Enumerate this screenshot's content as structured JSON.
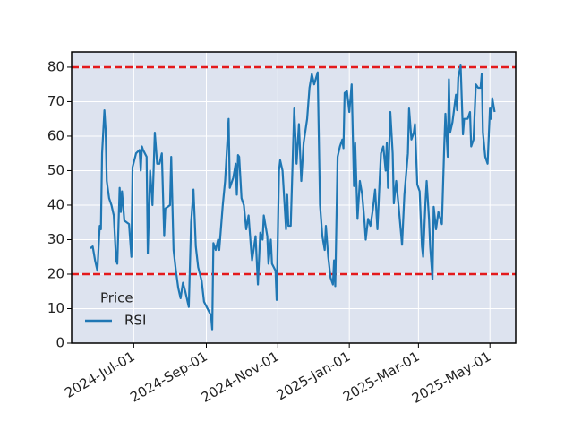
{
  "chart_data": {
    "type": "line",
    "x": [
      "2024-05-25",
      "2024-05-27",
      "2024-05-29",
      "2024-05-31",
      "2024-06-02",
      "2024-06-03",
      "2024-06-04",
      "2024-06-06",
      "2024-06-07",
      "2024-06-08",
      "2024-06-10",
      "2024-06-12",
      "2024-06-14",
      "2024-06-16",
      "2024-06-17",
      "2024-06-19",
      "2024-06-20",
      "2024-06-21",
      "2024-06-23",
      "2024-06-25",
      "2024-06-27",
      "2024-06-29",
      "2024-06-30",
      "2024-07-03",
      "2024-07-06",
      "2024-07-07",
      "2024-07-08",
      "2024-07-09",
      "2024-07-12",
      "2024-07-13",
      "2024-07-15",
      "2024-07-17",
      "2024-07-19",
      "2024-07-21",
      "2024-07-23",
      "2024-07-25",
      "2024-07-27",
      "2024-07-28",
      "2024-08-01",
      "2024-08-02",
      "2024-08-04",
      "2024-08-06",
      "2024-08-08",
      "2024-08-10",
      "2024-08-12",
      "2024-08-14",
      "2024-08-17",
      "2024-08-19",
      "2024-08-21",
      "2024-08-23",
      "2024-08-25",
      "2024-08-28",
      "2024-08-30",
      "2024-09-02",
      "2024-09-05",
      "2024-09-06",
      "2024-09-07",
      "2024-09-09",
      "2024-09-11",
      "2024-09-12",
      "2024-09-15",
      "2024-09-17",
      "2024-09-18",
      "2024-09-20",
      "2024-09-21",
      "2024-09-24",
      "2024-09-26",
      "2024-09-27",
      "2024-09-28",
      "2024-09-29",
      "2024-10-01",
      "2024-10-03",
      "2024-10-05",
      "2024-10-07",
      "2024-10-09",
      "2024-10-10",
      "2024-10-13",
      "2024-10-15",
      "2024-10-17",
      "2024-10-19",
      "2024-10-20",
      "2024-10-23",
      "2024-10-24",
      "2024-10-26",
      "2024-10-27",
      "2024-10-30",
      "2024-10-31",
      "2024-11-02",
      "2024-11-03",
      "2024-11-05",
      "2024-11-08",
      "2024-11-09",
      "2024-11-10",
      "2024-11-12",
      "2024-11-15",
      "2024-11-17",
      "2024-11-19",
      "2024-11-21",
      "2024-11-23",
      "2024-11-26",
      "2024-11-28",
      "2024-11-30",
      "2024-12-02",
      "2024-12-05",
      "2024-12-07",
      "2024-12-09",
      "2024-12-11",
      "2024-12-12",
      "2024-12-14",
      "2024-12-16",
      "2024-12-18",
      "2024-12-19",
      "2024-12-20",
      "2024-12-22",
      "2024-12-24",
      "2024-12-26",
      "2024-12-27",
      "2024-12-28",
      "2024-12-30",
      "2025-01-01",
      "2025-01-03",
      "2025-01-05",
      "2025-01-06",
      "2025-01-08",
      "2025-01-10",
      "2025-01-12",
      "2025-01-14",
      "2025-01-15",
      "2025-01-17",
      "2025-01-19",
      "2025-01-21",
      "2025-01-23",
      "2025-01-25",
      "2025-01-27",
      "2025-01-28",
      "2025-01-30",
      "2025-02-01",
      "2025-02-02",
      "2025-02-03",
      "2025-02-05",
      "2025-02-07",
      "2025-02-08",
      "2025-02-10",
      "2025-02-12",
      "2025-02-15",
      "2025-02-17",
      "2025-02-20",
      "2025-02-21",
      "2025-02-23",
      "2025-02-25",
      "2025-02-26",
      "2025-02-28",
      "2025-03-02",
      "2025-03-04",
      "2025-03-05",
      "2025-03-07",
      "2025-03-08",
      "2025-03-10",
      "2025-03-11",
      "2025-03-13",
      "2025-03-14",
      "2025-03-16",
      "2025-03-18",
      "2025-03-21",
      "2025-03-23",
      "2025-03-24",
      "2025-03-26",
      "2025-03-27",
      "2025-03-28",
      "2025-03-30",
      "2025-04-02",
      "2025-04-03",
      "2025-04-04",
      "2025-04-06",
      "2025-04-08",
      "2025-04-09",
      "2025-04-12",
      "2025-04-14",
      "2025-04-15",
      "2025-04-17",
      "2025-04-19",
      "2025-04-21",
      "2025-04-23",
      "2025-04-24",
      "2025-04-25",
      "2025-04-27",
      "2025-04-29",
      "2025-05-01",
      "2025-05-02",
      "2025-05-03",
      "2025-05-05"
    ],
    "series": [
      {
        "name": "RSI",
        "color": "#1f77b4",
        "values": [
          27.5,
          28,
          24,
          21,
          34,
          33,
          55,
          67.5,
          62,
          47,
          42,
          40,
          37,
          24,
          23,
          45,
          38,
          44,
          35.5,
          35,
          34.5,
          25,
          51,
          55,
          56,
          50,
          57,
          56,
          54,
          26,
          50,
          40,
          61,
          52,
          52,
          55,
          31,
          39,
          40,
          54,
          27,
          21,
          16,
          13,
          17.5,
          15,
          10.5,
          35,
          44.5,
          28,
          22,
          18,
          12,
          10,
          8,
          4,
          29,
          27,
          30,
          27,
          40,
          47,
          53,
          65,
          45,
          48,
          52,
          43,
          54.5,
          54,
          42,
          40,
          33,
          37,
          28,
          24,
          31,
          17,
          32,
          30,
          37,
          31,
          23,
          30,
          23,
          21,
          12.5,
          50,
          53,
          50,
          33,
          43,
          34,
          34,
          68,
          52,
          63.5,
          47,
          58,
          65,
          74,
          78,
          75,
          78.5,
          40,
          31,
          27,
          34,
          25,
          19,
          17,
          24,
          16.5,
          54,
          57,
          59,
          56.5,
          72.5,
          73,
          67,
          75,
          45.5,
          58,
          36,
          47,
          43,
          35,
          30,
          36,
          34,
          38.5,
          44.5,
          33,
          48,
          55,
          57,
          50,
          58,
          45,
          67,
          55,
          40.5,
          47,
          40,
          28.5,
          43,
          55,
          68,
          59,
          61,
          63.5,
          46,
          44,
          28,
          25,
          41,
          47,
          36,
          28,
          18.5,
          39.5,
          33,
          38,
          34.5,
          57,
          66.5,
          54,
          76.5,
          61,
          64,
          72,
          67.5,
          77,
          80.5,
          60.5,
          65,
          65,
          67,
          57,
          59,
          75,
          74,
          74,
          78,
          61,
          54,
          52,
          68,
          65,
          71,
          67
        ]
      }
    ],
    "xlim": [
      "2024-05-09",
      "2025-05-23"
    ],
    "xticks": [
      {
        "value": "2024-07-01",
        "label": "2024-Jul-01"
      },
      {
        "value": "2024-09-01",
        "label": "2024-Sep-01"
      },
      {
        "value": "2024-11-01",
        "label": "2024-Nov-01"
      },
      {
        "value": "2025-01-01",
        "label": "2025-Jan-01"
      },
      {
        "value": "2025-03-01",
        "label": "2025-Mar-01"
      },
      {
        "value": "2025-05-01",
        "label": "2025-May-01"
      }
    ],
    "ylim": [
      0,
      84.4
    ],
    "yticks": [
      0,
      10,
      20,
      30,
      40,
      50,
      60,
      70,
      80
    ],
    "thresholds": [
      20,
      80
    ],
    "threshold_color": "#e41a1c",
    "grid": true,
    "background": "#dde3ef",
    "legend_title": "Price",
    "legend_position": "lower left"
  }
}
